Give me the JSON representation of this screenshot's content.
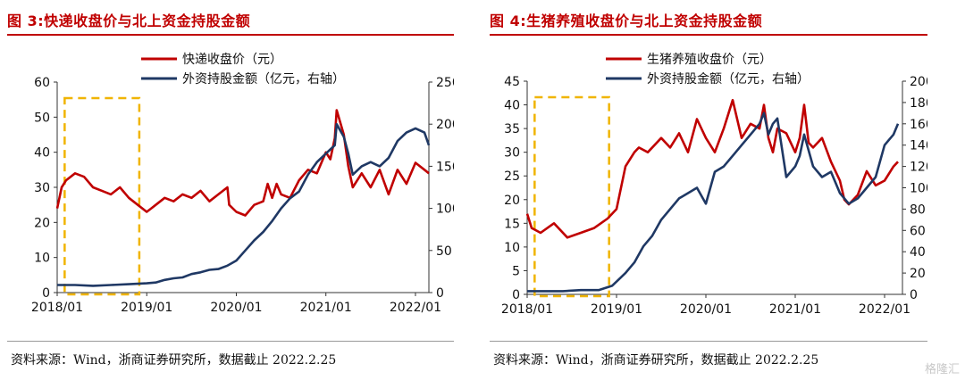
{
  "chart_data": [
    {
      "type": "line",
      "title": "图 3:快递收盘价与北上资金持股金额",
      "source": "资料来源：Wind，浙商证券研究所，数据截止 2022.2.25",
      "x_ticks": [
        "2018/01",
        "2019/01",
        "2020/01",
        "2021/01",
        "2022/01"
      ],
      "ylim_left": [
        0,
        60
      ],
      "yticks_left": [
        "0",
        "10",
        "20",
        "30",
        "40",
        "50",
        "60"
      ],
      "ylim_right": [
        0,
        250
      ],
      "yticks_right": [
        "0",
        "50",
        "100",
        "150",
        "200",
        "250"
      ],
      "highlight": {
        "x_from": "2018/02",
        "x_to": "2018/12",
        "color": "#f0b400"
      },
      "series": [
        {
          "name": "快递收盘价（元）",
          "color": "#c00000",
          "axis": "left",
          "x": [
            2018.0,
            2018.05,
            2018.1,
            2018.2,
            2018.3,
            2018.4,
            2018.5,
            2018.6,
            2018.7,
            2018.8,
            2018.9,
            2019.0,
            2019.05,
            2019.1,
            2019.2,
            2019.3,
            2019.4,
            2019.5,
            2019.6,
            2019.7,
            2019.8,
            2019.9,
            2019.92,
            2020.0,
            2020.1,
            2020.2,
            2020.3,
            2020.35,
            2020.4,
            2020.45,
            2020.5,
            2020.6,
            2020.7,
            2020.8,
            2020.9,
            2021.0,
            2021.05,
            2021.1,
            2021.12,
            2021.2,
            2021.25,
            2021.3,
            2021.4,
            2021.5,
            2021.6,
            2021.7,
            2021.8,
            2021.9,
            2022.0,
            2022.1,
            2022.15
          ],
          "values": [
            24,
            30,
            32,
            34,
            33,
            30,
            29,
            28,
            30,
            27,
            25,
            23,
            24,
            25,
            27,
            26,
            28,
            27,
            29,
            26,
            28,
            30,
            25,
            23,
            22,
            25,
            26,
            31,
            27,
            31,
            28,
            27,
            32,
            35,
            34,
            40,
            38,
            44,
            52,
            45,
            36,
            30,
            34,
            30,
            35,
            28,
            35,
            31,
            37,
            35,
            34
          ]
        },
        {
          "name": "外资持股金额（亿元，右轴）",
          "color": "#1f3864",
          "axis": "right",
          "x": [
            2018.0,
            2018.2,
            2018.4,
            2018.6,
            2018.8,
            2019.0,
            2019.1,
            2019.2,
            2019.3,
            2019.4,
            2019.5,
            2019.6,
            2019.7,
            2019.8,
            2019.9,
            2020.0,
            2020.1,
            2020.2,
            2020.3,
            2020.4,
            2020.5,
            2020.6,
            2020.7,
            2020.8,
            2020.9,
            2021.0,
            2021.05,
            2021.1,
            2021.12,
            2021.2,
            2021.25,
            2021.3,
            2021.4,
            2021.5,
            2021.6,
            2021.7,
            2021.8,
            2021.9,
            2022.0,
            2022.1,
            2022.15
          ],
          "values": [
            9,
            9,
            8,
            9,
            10,
            11,
            12,
            15,
            17,
            18,
            22,
            24,
            27,
            28,
            32,
            38,
            50,
            62,
            72,
            85,
            100,
            112,
            120,
            140,
            155,
            165,
            170,
            175,
            200,
            185,
            165,
            140,
            150,
            155,
            150,
            160,
            180,
            190,
            195,
            190,
            175
          ]
        }
      ]
    },
    {
      "type": "line",
      "title": "图 4:生猪养殖收盘价与北上资金持股金额",
      "source": "资料来源：Wind，浙商证券研究所，数据截止 2022.2.25",
      "x_ticks": [
        "2018/01",
        "2019/01",
        "2020/01",
        "2021/01",
        "2022/01"
      ],
      "ylim_left": [
        0,
        45
      ],
      "yticks_left": [
        "0",
        "5",
        "10",
        "15",
        "20",
        "25",
        "30",
        "35",
        "40",
        "45"
      ],
      "ylim_right": [
        0,
        200
      ],
      "yticks_right": [
        "0",
        "20",
        "40",
        "60",
        "80",
        "100",
        "120",
        "140",
        "160",
        "180",
        "200"
      ],
      "highlight": {
        "x_from": "2018/02",
        "x_to": "2018/12",
        "color": "#f0b400"
      },
      "series": [
        {
          "name": "生猪养殖收盘价（元）",
          "color": "#c00000",
          "axis": "left",
          "x": [
            2018.0,
            2018.05,
            2018.15,
            2018.3,
            2018.45,
            2018.6,
            2018.75,
            2018.9,
            2019.0,
            2019.1,
            2019.2,
            2019.25,
            2019.35,
            2019.5,
            2019.6,
            2019.7,
            2019.8,
            2019.9,
            2020.0,
            2020.1,
            2020.2,
            2020.25,
            2020.3,
            2020.4,
            2020.5,
            2020.6,
            2020.65,
            2020.7,
            2020.75,
            2020.8,
            2020.9,
            2021.0,
            2021.05,
            2021.1,
            2021.15,
            2021.2,
            2021.3,
            2021.4,
            2021.5,
            2021.55,
            2021.6,
            2021.7,
            2021.8,
            2021.9,
            2022.0,
            2022.1,
            2022.15
          ],
          "values": [
            17,
            14,
            13,
            15,
            12,
            13,
            14,
            16,
            18,
            27,
            30,
            31,
            30,
            33,
            31,
            34,
            30,
            37,
            33,
            30,
            35,
            38,
            41,
            33,
            36,
            35,
            40,
            33,
            30,
            35,
            34,
            30,
            33,
            40,
            32,
            31,
            33,
            28,
            24,
            20,
            19,
            21,
            26,
            23,
            24,
            27,
            28
          ]
        },
        {
          "name": "外资持股金额（亿元，右轴）",
          "color": "#1f3864",
          "axis": "right",
          "x": [
            2018.0,
            2018.2,
            2018.4,
            2018.6,
            2018.8,
            2018.95,
            2019.0,
            2019.1,
            2019.2,
            2019.3,
            2019.4,
            2019.5,
            2019.6,
            2019.7,
            2019.8,
            2019.9,
            2020.0,
            2020.1,
            2020.2,
            2020.3,
            2020.4,
            2020.5,
            2020.6,
            2020.65,
            2020.7,
            2020.75,
            2020.8,
            2020.9,
            2021.0,
            2021.05,
            2021.1,
            2021.2,
            2021.3,
            2021.4,
            2021.5,
            2021.6,
            2021.7,
            2021.8,
            2021.9,
            2022.0,
            2022.05,
            2022.1,
            2022.15
          ],
          "values": [
            3,
            3,
            3,
            4,
            4,
            8,
            12,
            20,
            30,
            45,
            55,
            70,
            80,
            90,
            95,
            100,
            85,
            115,
            120,
            130,
            140,
            150,
            160,
            170,
            150,
            160,
            165,
            110,
            120,
            130,
            150,
            120,
            110,
            115,
            95,
            85,
            90,
            100,
            110,
            140,
            145,
            150,
            160
          ]
        }
      ]
    }
  ],
  "watermark": "格隆汇"
}
